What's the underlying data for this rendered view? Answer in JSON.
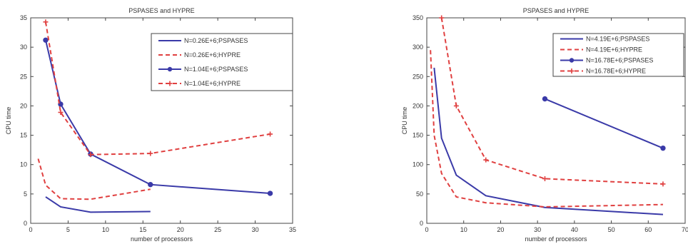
{
  "chart_data": [
    {
      "type": "line",
      "title": "PSPASES and HYPRE",
      "xlabel": "number of processors",
      "ylabel": "CPU time",
      "xlim": [
        0,
        35
      ],
      "ylim": [
        0,
        35
      ],
      "xticks": [
        0,
        5,
        10,
        15,
        20,
        25,
        30,
        35
      ],
      "yticks": [
        0,
        5,
        10,
        15,
        20,
        25,
        30,
        35
      ],
      "legend_position": "top-right",
      "series": [
        {
          "name": "N=0.26E+6;PSPASES",
          "color": "#3a3aa8",
          "dash": "solid",
          "marker": "none",
          "x": [
            2,
            4,
            8,
            16
          ],
          "y": [
            4.5,
            2.8,
            1.9,
            2.0
          ]
        },
        {
          "name": "N=0.26E+6;HYPRE",
          "color": "#e04040",
          "dash": "dashed",
          "marker": "none",
          "x": [
            1,
            2,
            4,
            8,
            16
          ],
          "y": [
            11,
            6.5,
            4.2,
            4.1,
            5.8
          ]
        },
        {
          "name": "N=1.04E+6;PSPASES",
          "color": "#3a3aa8",
          "dash": "solid",
          "marker": "circle",
          "x": [
            2,
            4,
            8,
            16,
            32
          ],
          "y": [
            31.2,
            20.3,
            11.8,
            6.6,
            5.1
          ]
        },
        {
          "name": "N=1.04E+6;HYPRE",
          "color": "#e04040",
          "dash": "dashed",
          "marker": "plus",
          "x": [
            2,
            4,
            8,
            16,
            32
          ],
          "y": [
            34.3,
            18.9,
            11.7,
            11.9,
            15.2
          ]
        }
      ]
    },
    {
      "type": "line",
      "title": "PSPASES and HYPRE",
      "xlabel": "number of processors",
      "ylabel": "CPU time",
      "xlim": [
        0,
        70
      ],
      "ylim": [
        0,
        350
      ],
      "xticks": [
        0,
        10,
        20,
        30,
        40,
        50,
        60,
        70
      ],
      "yticks": [
        0,
        50,
        100,
        150,
        200,
        250,
        300,
        350
      ],
      "legend_position": "top-right",
      "series": [
        {
          "name": "N=4.19E+6;PSPASES",
          "color": "#3a3aa8",
          "dash": "solid",
          "marker": "none",
          "x": [
            2,
            4,
            8,
            16,
            32,
            64
          ],
          "y": [
            265,
            145,
            82,
            47,
            27,
            15
          ]
        },
        {
          "name": "N=4.19E+6;HYPRE",
          "color": "#e04040",
          "dash": "dashed",
          "marker": "none",
          "x": [
            1,
            2,
            4,
            8,
            16,
            32,
            64
          ],
          "y": [
            295,
            150,
            85,
            45,
            35,
            28,
            32
          ]
        },
        {
          "name": "N=16.78E+6;PSPASES",
          "color": "#3a3aa8",
          "dash": "solid",
          "marker": "circle",
          "x": [
            32,
            64
          ],
          "y": [
            212,
            128
          ]
        },
        {
          "name": "N=16.78E+6;HYPRE",
          "color": "#e04040",
          "dash": "dashed",
          "marker": "plus",
          "x": [
            4,
            8,
            16,
            32,
            64
          ],
          "y": [
            350,
            200,
            108,
            76,
            67
          ]
        }
      ]
    }
  ]
}
